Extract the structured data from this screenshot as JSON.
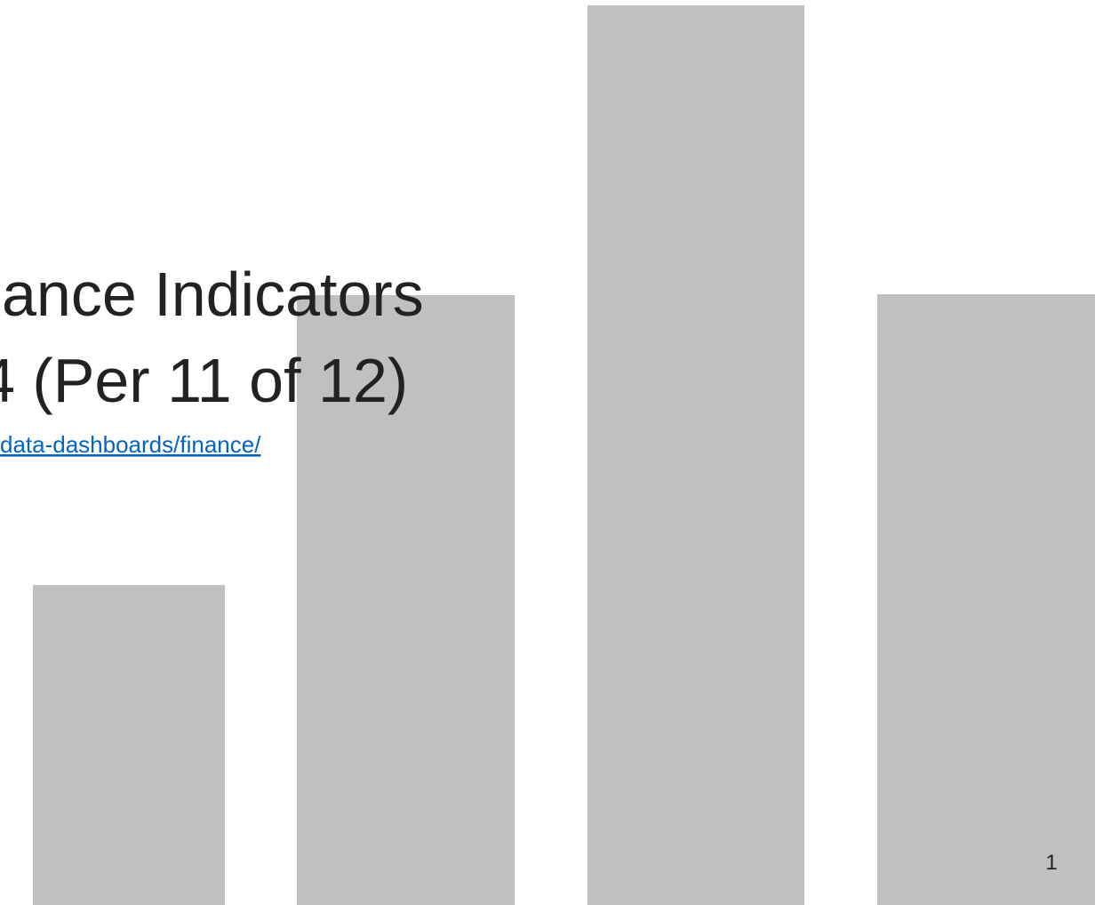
{
  "slide": {
    "title_lines": [
      "ance Indicators",
      "4 (Per 11 of 12)"
    ],
    "link": "data-dashboards/finance/",
    "page_number": "1"
  }
}
